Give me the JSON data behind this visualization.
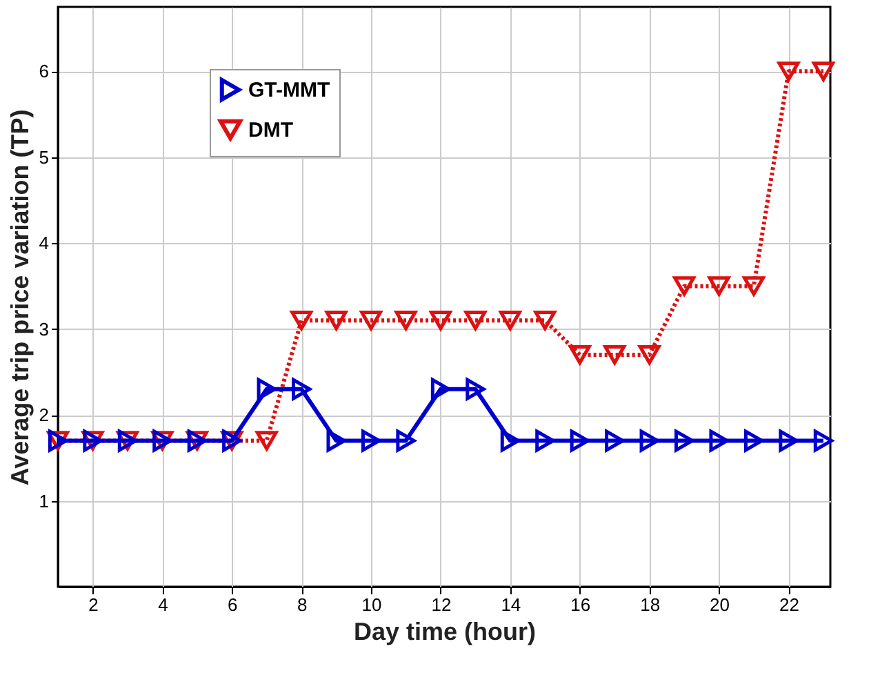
{
  "chart_data": {
    "type": "line",
    "xlabel": "Day time (hour)",
    "ylabel": "Average trip price variation (TP)",
    "x": [
      1,
      2,
      3,
      4,
      5,
      6,
      7,
      8,
      9,
      10,
      11,
      12,
      13,
      14,
      15,
      16,
      17,
      18,
      19,
      20,
      21,
      22,
      23
    ],
    "series": [
      {
        "name": "GT-MMT",
        "color": "#0000cc",
        "line_style": "solid",
        "marker": "triangle-right",
        "values": [
          1.7,
          1.7,
          1.7,
          1.7,
          1.7,
          1.7,
          2.3,
          2.3,
          1.7,
          1.7,
          1.7,
          2.3,
          2.3,
          1.7,
          1.7,
          1.7,
          1.7,
          1.7,
          1.7,
          1.7,
          1.7,
          1.7,
          1.7
        ]
      },
      {
        "name": "DMT",
        "color": "#dd1111",
        "line_style": "dotted",
        "marker": "triangle-down",
        "values": [
          1.7,
          1.7,
          1.7,
          1.7,
          1.7,
          1.7,
          1.7,
          3.1,
          3.1,
          3.1,
          3.1,
          3.1,
          3.1,
          3.1,
          3.1,
          2.7,
          2.7,
          2.7,
          3.5,
          3.5,
          3.5,
          6.0,
          6.0
        ]
      }
    ],
    "xlim": [
      1,
      23.2
    ],
    "xticks": [
      2,
      4,
      6,
      8,
      10,
      12,
      14,
      16,
      18,
      20,
      22
    ],
    "ylim": [
      0,
      6.75
    ],
    "yticks": [
      1,
      2,
      3,
      4,
      5,
      6
    ],
    "grid": true,
    "legend": "top left"
  }
}
